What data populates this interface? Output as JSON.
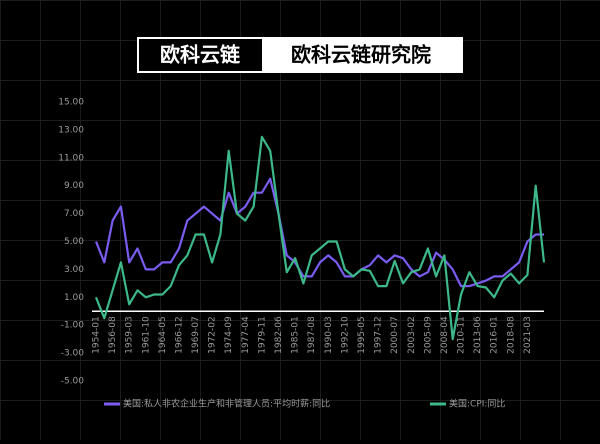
{
  "brand": {
    "logo": "欧科云链",
    "name": "欧科云链研究院"
  },
  "chart_data": {
    "type": "line",
    "categories": [
      "1954-01",
      null,
      "1956-08",
      null,
      "1959-03",
      null,
      "1961-10",
      null,
      "1964-05",
      null,
      "1966-12",
      null,
      "1969-07",
      null,
      "1972-02",
      null,
      "1974-09",
      null,
      "1977-04",
      null,
      "1979-11",
      null,
      "1982-06",
      null,
      "1985-01",
      null,
      "1987-08",
      null,
      "1990-03",
      null,
      "1992-10",
      null,
      "1995-05",
      null,
      "1997-12",
      null,
      "2000-07",
      null,
      "2003-02",
      null,
      "2005-09",
      null,
      "2008-04",
      null,
      "2010-11",
      null,
      "2013-06",
      null,
      "2016-01",
      null,
      "2018-08",
      null,
      "2021-03",
      null,
      null
    ],
    "series": [
      {
        "name": "美国:私人非农企业生产和非管理人员:平均时薪:同比",
        "color": "#7b5cf0",
        "values": [
          5,
          3.5,
          6.5,
          7.5,
          3.5,
          4.5,
          3,
          3,
          3.5,
          3.5,
          4.5,
          6.5,
          7,
          7.5,
          7,
          6.5,
          8.5,
          7,
          7.5,
          8.5,
          8.5,
          9.5,
          7,
          4,
          3.5,
          2.5,
          2.5,
          3.5,
          4,
          3.5,
          2.5,
          2.5,
          3,
          3.3,
          4,
          3.5,
          4,
          3.8,
          3,
          2.5,
          2.8,
          4.2,
          3.7,
          3,
          1.8,
          1.8,
          2,
          2.2,
          2.5,
          2.5,
          3,
          3.5,
          5,
          5.5,
          5.5
        ]
      },
      {
        "name": "美国:CPI:同比",
        "color": "#3cb88a",
        "values": [
          1,
          -0.5,
          1.5,
          3.5,
          0.5,
          1.5,
          1,
          1.2,
          1.2,
          1.8,
          3.3,
          4,
          5.5,
          5.5,
          3.5,
          5.5,
          11.5,
          7,
          6.5,
          7.5,
          12.5,
          11.5,
          7,
          2.8,
          3.8,
          2,
          4,
          4.5,
          5,
          5,
          3,
          2.5,
          3,
          2.9,
          1.8,
          1.8,
          3.6,
          2,
          2.8,
          3,
          4.5,
          2.5,
          4,
          -2,
          1.2,
          2.8,
          1.8,
          1.7,
          1,
          2.2,
          2.7,
          2,
          2.6,
          9,
          3.5
        ]
      }
    ],
    "ylim": [
      -5,
      15
    ],
    "yticks": [
      {
        "value": -5,
        "label": "-5.00"
      },
      {
        "value": -3,
        "label": "-3.00"
      },
      {
        "value": -1,
        "label": "-1.00"
      },
      {
        "value": 1,
        "label": "1.00"
      },
      {
        "value": 3,
        "label": "3.00"
      },
      {
        "value": 5,
        "label": "5.00"
      },
      {
        "value": 7,
        "label": "7.00"
      },
      {
        "value": 9,
        "label": "9.00"
      },
      {
        "value": 11,
        "label": "11.00"
      },
      {
        "value": 13,
        "label": "13.00"
      },
      {
        "value": 15,
        "label": "15.00"
      }
    ],
    "grid": false
  }
}
